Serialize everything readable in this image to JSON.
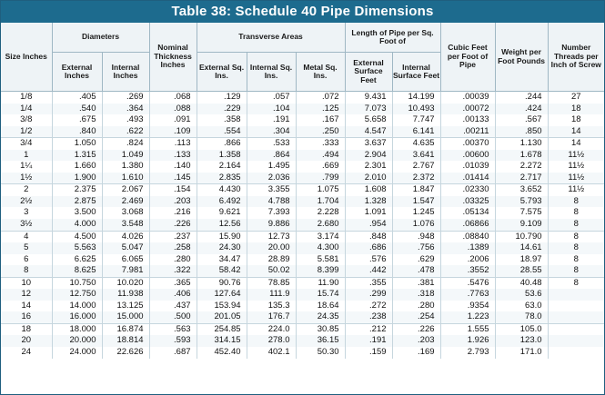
{
  "title": "Table 38: Schedule 40 Pipe Dimensions",
  "header": {
    "size": "Size Inches",
    "diameters": "Diameters",
    "external_inches": "External Inches",
    "internal_inches": "Internal Inches",
    "nominal_thickness": "Nominal Thickness Inches",
    "transverse_areas": "Transverse Areas",
    "external_sq_ins": "External Sq. Ins.",
    "internal_sq_ins": "Internal Sq. Ins.",
    "metal_sq_ins": "Metal Sq. Ins.",
    "length_group": "Length of Pipe per Sq. Foot of",
    "external_surface": "External Surface Feet",
    "internal_surface": "Internal Surface Feet",
    "cubic_feet": "Cubic Feet per Foot of Pipe",
    "weight": "Weight per Foot Pounds",
    "threads": "Number Threads per Inch of Screw"
  },
  "rows": [
    [
      "1/8",
      ".405",
      ".269",
      ".068",
      ".129",
      ".057",
      ".072",
      "9.431",
      "14.199",
      ".00039",
      ".244",
      "27"
    ],
    [
      "1/4",
      ".540",
      ".364",
      ".088",
      ".229",
      ".104",
      ".125",
      "7.073",
      "10.493",
      ".00072",
      ".424",
      "18"
    ],
    [
      "3/8",
      ".675",
      ".493",
      ".091",
      ".358",
      ".191",
      ".167",
      "5.658",
      "7.747",
      ".00133",
      ".567",
      "18"
    ],
    [
      "1/2",
      ".840",
      ".622",
      ".109",
      ".554",
      ".304",
      ".250",
      "4.547",
      "6.141",
      ".00211",
      ".850",
      "14"
    ],
    [
      "3/4",
      "1.050",
      ".824",
      ".113",
      ".866",
      ".533",
      ".333",
      "3.637",
      "4.635",
      ".00370",
      "1.130",
      "14"
    ],
    [
      "1",
      "1.315",
      "1.049",
      ".133",
      "1.358",
      ".864",
      ".494",
      "2.904",
      "3.641",
      ".00600",
      "1.678",
      "11½"
    ],
    [
      "1¼",
      "1.660",
      "1.380",
      ".140",
      "2.164",
      "1.495",
      ".669",
      "2.301",
      "2.767",
      ".01039",
      "2.272",
      "11½"
    ],
    [
      "1½",
      "1.900",
      "1.610",
      ".145",
      "2.835",
      "2.036",
      ".799",
      "2.010",
      "2.372",
      ".01414",
      "2.717",
      "11½"
    ],
    [
      "2",
      "2.375",
      "2.067",
      ".154",
      "4.430",
      "3.355",
      "1.075",
      "1.608",
      "1.847",
      ".02330",
      "3.652",
      "11½"
    ],
    [
      "2½",
      "2.875",
      "2.469",
      ".203",
      "6.492",
      "4.788",
      "1.704",
      "1.328",
      "1.547",
      ".03325",
      "5.793",
      "8"
    ],
    [
      "3",
      "3.500",
      "3.068",
      ".216",
      "9.621",
      "7.393",
      "2.228",
      "1.091",
      "1.245",
      ".05134",
      "7.575",
      "8"
    ],
    [
      "3½",
      "4.000",
      "3.548",
      ".226",
      "12.56",
      "9.886",
      "2.680",
      ".954",
      "1.076",
      ".06866",
      "9.109",
      "8"
    ],
    [
      "4",
      "4.500",
      "4.026",
      ".237",
      "15.90",
      "12.73",
      "3.174",
      ".848",
      ".948",
      ".08840",
      "10.790",
      "8"
    ],
    [
      "5",
      "5.563",
      "5.047",
      ".258",
      "24.30",
      "20.00",
      "4.300",
      ".686",
      ".756",
      ".1389",
      "14.61",
      "8"
    ],
    [
      "6",
      "6.625",
      "6.065",
      ".280",
      "34.47",
      "28.89",
      "5.581",
      ".576",
      ".629",
      ".2006",
      "18.97",
      "8"
    ],
    [
      "8",
      "8.625",
      "7.981",
      ".322",
      "58.42",
      "50.02",
      "8.399",
      ".442",
      ".478",
      ".3552",
      "28.55",
      "8"
    ],
    [
      "10",
      "10.750",
      "10.020",
      ".365",
      "90.76",
      "78.85",
      "11.90",
      ".355",
      ".381",
      ".5476",
      "40.48",
      "8"
    ],
    [
      "12",
      "12.750",
      "11.938",
      ".406",
      "127.64",
      "111.9",
      "15.74",
      ".299",
      ".318",
      ".7763",
      "53.6",
      ""
    ],
    [
      "14",
      "14.000",
      "13.125",
      ".437",
      "153.94",
      "135.3",
      "18.64",
      ".272",
      ".280",
      ".9354",
      "63.0",
      ""
    ],
    [
      "16",
      "16.000",
      "15.000",
      ".500",
      "201.05",
      "176.7",
      "24.35",
      ".238",
      ".254",
      "1.223",
      "78.0",
      ""
    ],
    [
      "18",
      "18.000",
      "16.874",
      ".563",
      "254.85",
      "224.0",
      "30.85",
      ".212",
      ".226",
      "1.555",
      "105.0",
      ""
    ],
    [
      "20",
      "20.000",
      "18.814",
      ".593",
      "314.15",
      "278.0",
      "36.15",
      ".191",
      ".203",
      "1.926",
      "123.0",
      ""
    ],
    [
      "24",
      "24.000",
      "22.626",
      ".687",
      "452.40",
      "402.1",
      "50.30",
      ".159",
      ".169",
      "2.793",
      "171.0",
      ""
    ]
  ]
}
